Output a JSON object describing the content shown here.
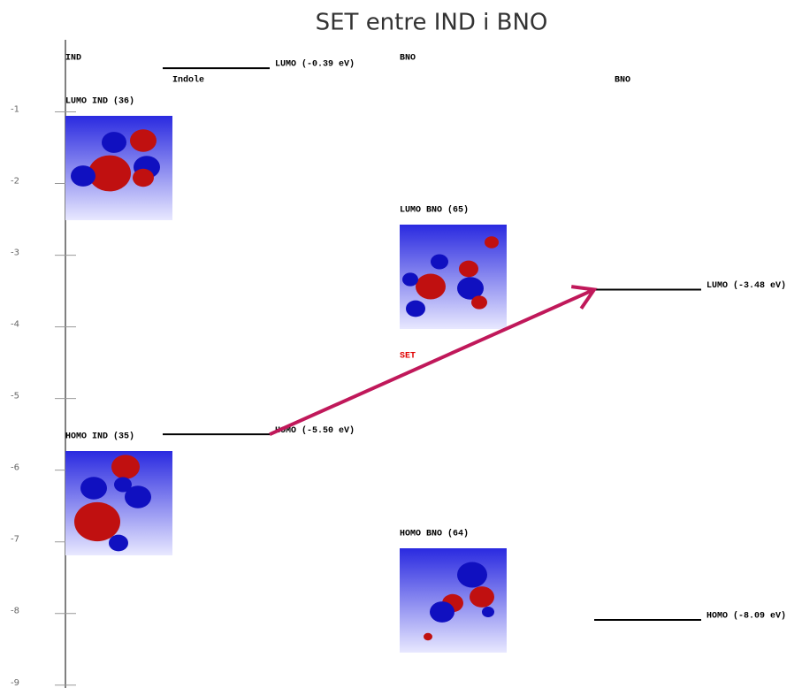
{
  "chart_data": {
    "type": "energy",
    "title": "SET entre IND i BNO",
    "ylim": [
      -9.04,
      0
    ],
    "yticks": [
      -1,
      -2,
      -3,
      -4,
      -5,
      -6,
      -7,
      -8,
      -9
    ],
    "series": [
      {
        "name": "Indole",
        "header": "IND",
        "color": "#000000",
        "values": [
          -0.39,
          -5.5
        ],
        "value_labels": [
          "LUMO (-0.39 eV)",
          "HOMO (-5.50 eV)"
        ]
      },
      {
        "name": "BNO",
        "header": "BNO",
        "color": "#000000",
        "values": [
          -3.48,
          -8.09
        ],
        "value_labels": [
          "LUMO (-3.48 eV)",
          "HOMO (-8.09 eV)"
        ]
      }
    ],
    "orbitals": [
      "LUMO IND (36)",
      "HOMO IND (35)",
      "LUMO BNO (65)",
      "HOMO BNO (64)"
    ],
    "transfer": {
      "label": "SET",
      "color": "#c0185a"
    }
  }
}
